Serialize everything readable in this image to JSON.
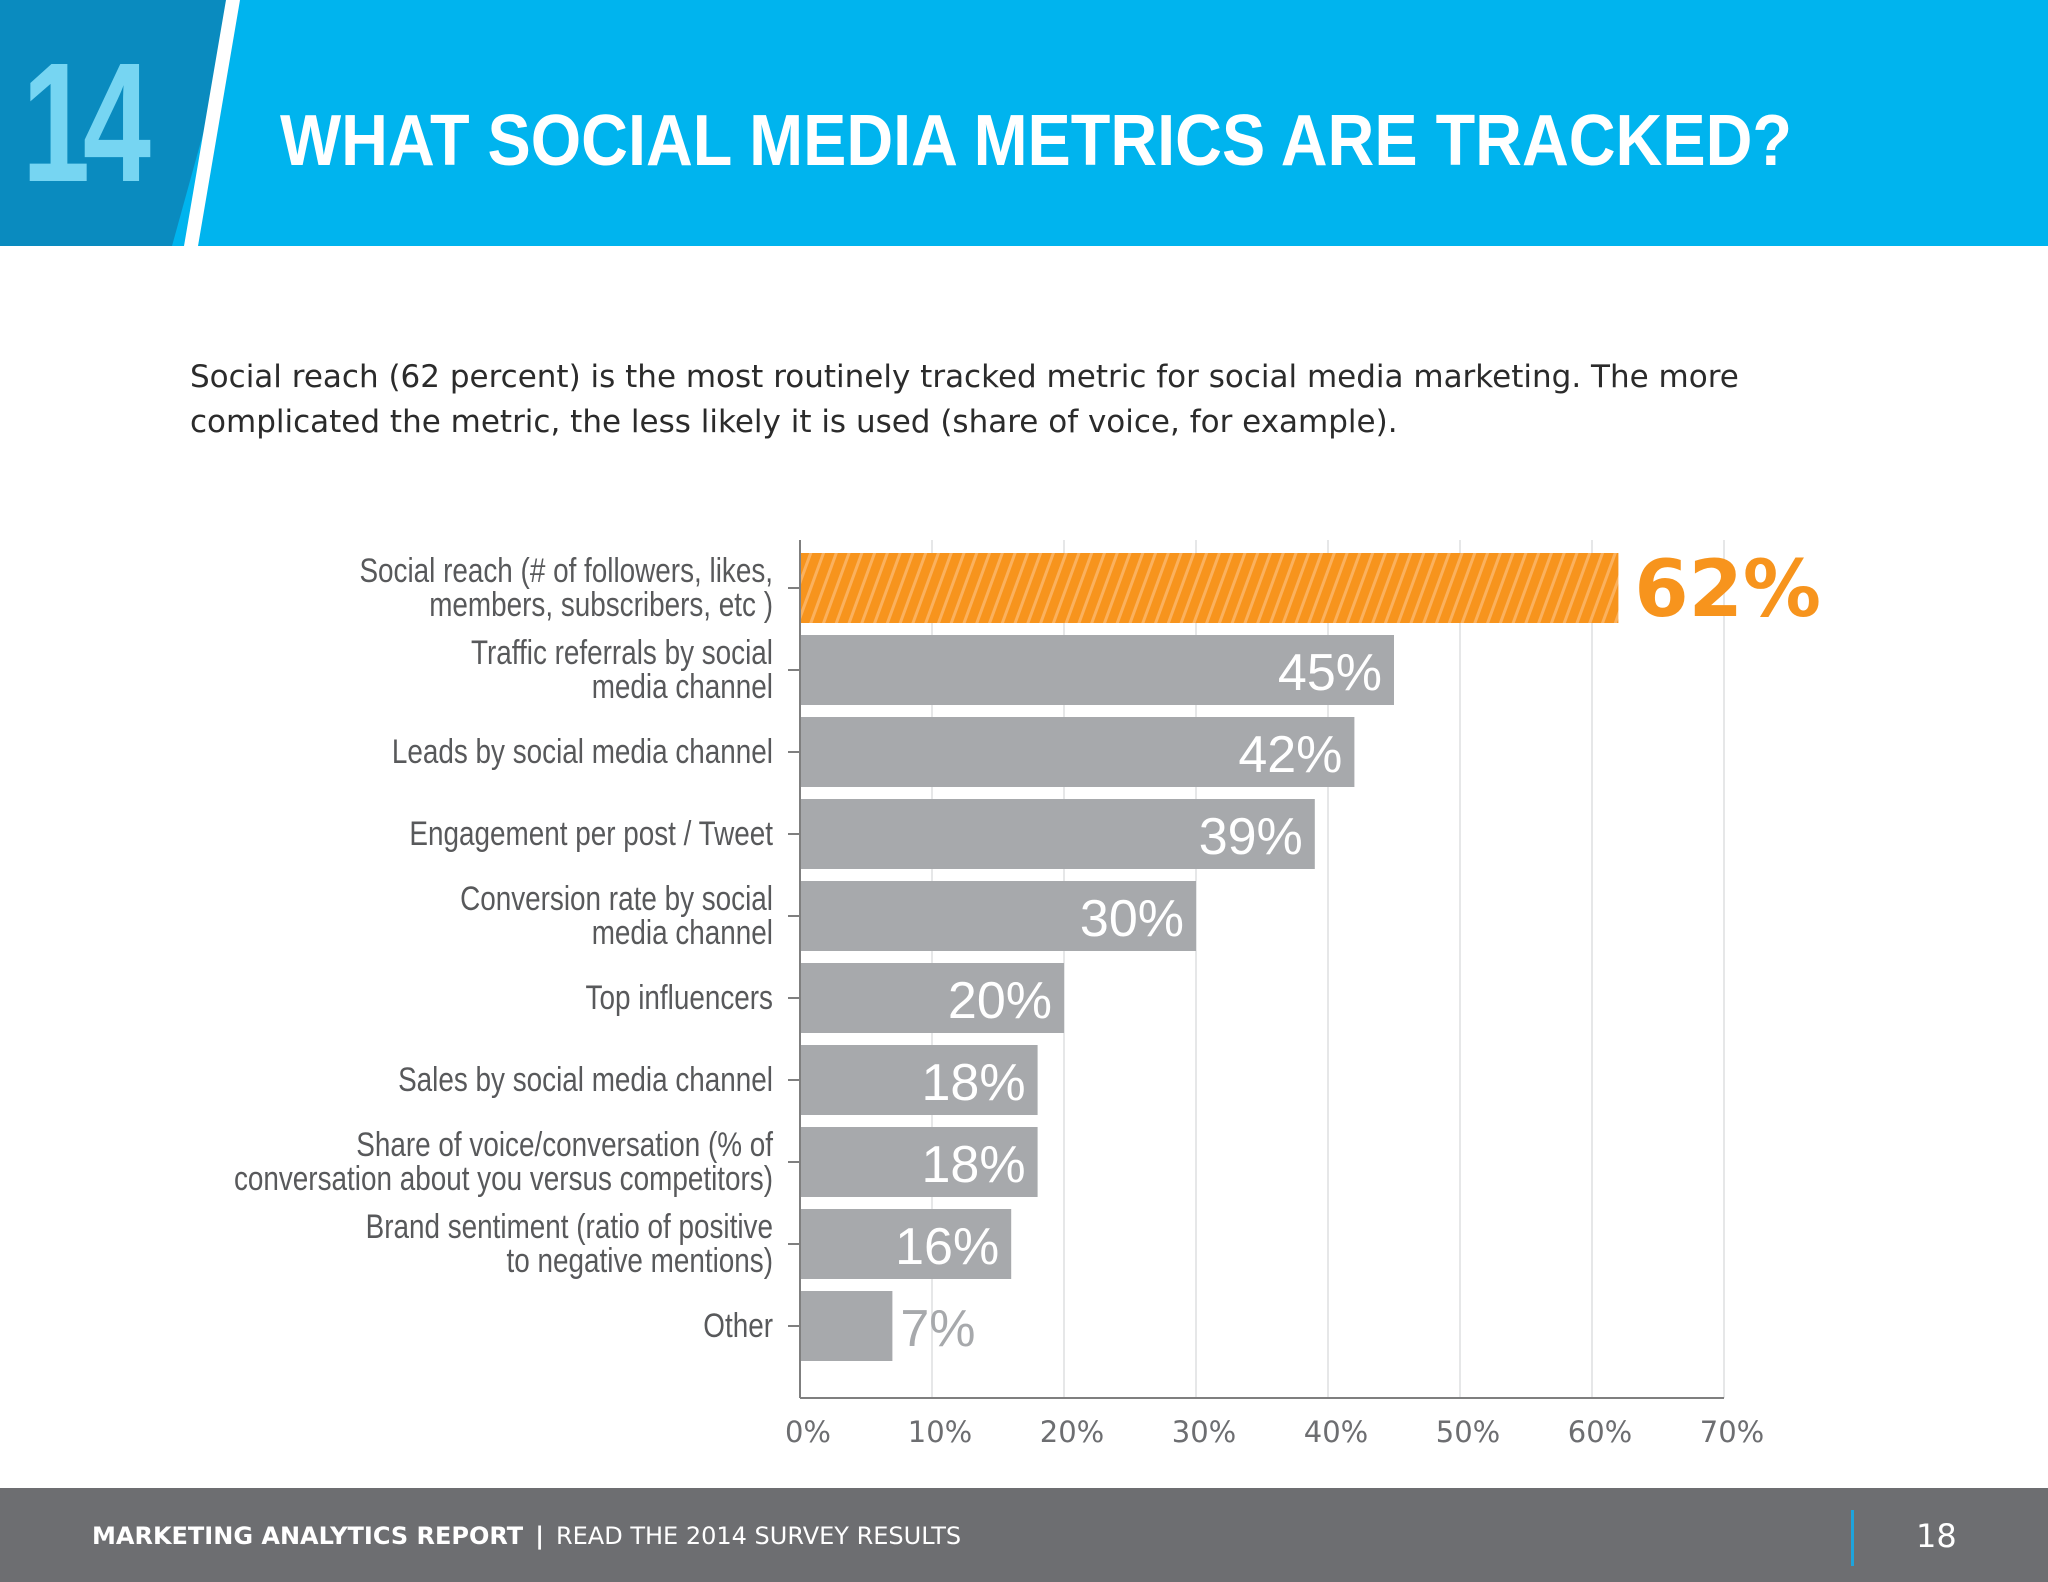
{
  "header": {
    "number": "14",
    "title": "WHAT SOCIAL MEDIA METRICS ARE TRACKED?",
    "colors": {
      "banner": "#00b4ee",
      "number_block": "#0a8bbf",
      "number_text": "#76d5f2"
    }
  },
  "intro": "Social reach (62 percent) is the most routinely tracked metric for social media marketing. The more complicated the metric, the less likely it is used (share of voice, for example).",
  "chart_data": {
    "type": "bar",
    "orientation": "horizontal",
    "categories": [
      [
        "Social reach (# of followers, likes,",
        "members, subscribers, etc )"
      ],
      [
        "Traffic referrals by social",
        "media channel"
      ],
      [
        "Leads by social media channel"
      ],
      [
        "Engagement per post / Tweet"
      ],
      [
        "Conversion rate by social",
        "media channel"
      ],
      [
        "Top influencers"
      ],
      [
        "Sales by social media channel"
      ],
      [
        "Share of voice/conversation (% of",
        "conversation about you versus competitors)"
      ],
      [
        "Brand sentiment (ratio of positive",
        "to negative mentions)"
      ],
      [
        "Other"
      ]
    ],
    "values": [
      62,
      45,
      42,
      39,
      30,
      20,
      18,
      18,
      16,
      7
    ],
    "data_labels": [
      "62%",
      "45%",
      "42%",
      "39%",
      "30%",
      "20%",
      "18%",
      "18%",
      "16%",
      "7%"
    ],
    "xlim": [
      0,
      70
    ],
    "x_ticks": [
      0,
      10,
      20,
      30,
      40,
      50,
      60,
      70
    ],
    "x_tick_labels": [
      "0%",
      "10%",
      "20%",
      "30%",
      "40%",
      "50%",
      "60%",
      "70%"
    ],
    "grid": true,
    "highlight_index": 0,
    "colors": {
      "highlight": "#f7941d",
      "bar": "#a7a9ac",
      "label": "#58595b",
      "grid": "#e6e7e8",
      "axis": "#7f7f7f"
    }
  },
  "footer": {
    "report": "MARKETING ANALYTICS REPORT",
    "separator": "|",
    "subtitle": "READ THE 2014 SURVEY RESULTS",
    "page": "18"
  }
}
